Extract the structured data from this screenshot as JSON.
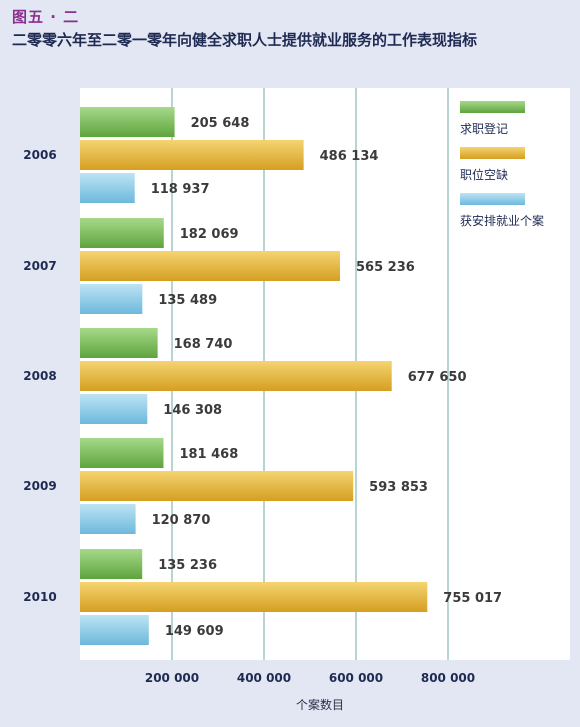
{
  "figure_label": "图五 · 二",
  "title": "二零零六年至二零一零年向健全求职人士提供就业服务的工作表现指标",
  "chart_data": {
    "type": "bar",
    "orientation": "horizontal",
    "categories": [
      "2006",
      "2007",
      "2008",
      "2009",
      "2010"
    ],
    "series": [
      {
        "name": "求职登记",
        "values": [
          205648,
          182069,
          168740,
          181468,
          135236
        ],
        "labels": [
          "205 648",
          "182 069",
          "168 740",
          "181 468",
          "135 236"
        ],
        "color": "#79b85a"
      },
      {
        "name": "职位空缺",
        "values": [
          486134,
          565236,
          677650,
          593853,
          755017
        ],
        "labels": [
          "486 134",
          "565 236",
          "677 650",
          "593 853",
          "755 017"
        ],
        "color": "#e4b23a"
      },
      {
        "name": "获安排就业个案",
        "values": [
          118937,
          135489,
          146308,
          120870,
          149609
        ],
        "labels": [
          "118 937",
          "135 489",
          "146 308",
          "120 870",
          "149 609"
        ],
        "color": "#8ccbe6"
      }
    ],
    "x_ticks": [
      200000,
      400000,
      600000,
      800000
    ],
    "x_tick_labels": [
      "200 000",
      "400 000",
      "600 000",
      "800 000"
    ],
    "xlabel": "个案数目",
    "xlim": [
      0,
      1000000
    ],
    "grid": true,
    "legend_position": "top-right"
  }
}
